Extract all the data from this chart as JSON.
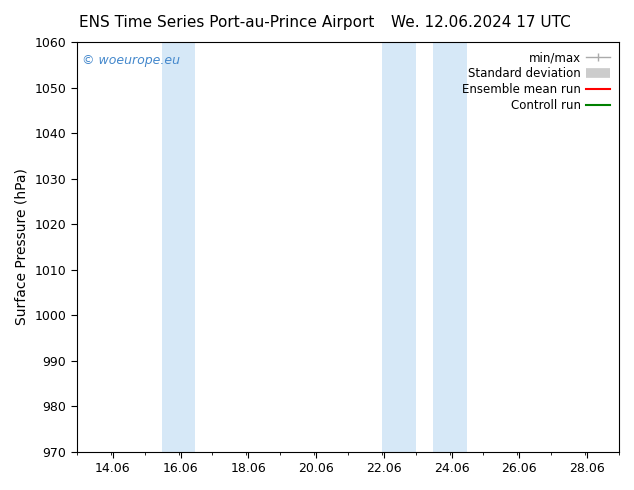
{
  "title_left": "ENS Time Series Port-au-Prince Airport",
  "title_right": "We. 12.06.2024 17 UTC",
  "ylabel": "Surface Pressure (hPa)",
  "ylim": [
    970,
    1060
  ],
  "yticks": [
    970,
    980,
    990,
    1000,
    1010,
    1020,
    1030,
    1040,
    1050,
    1060
  ],
  "xlim_start": 13.0,
  "xlim_end": 29.0,
  "xtick_positions": [
    14.06,
    16.06,
    18.06,
    20.06,
    22.06,
    24.06,
    26.06,
    28.06
  ],
  "xtick_labels": [
    "14.06",
    "16.06",
    "18.06",
    "20.06",
    "22.06",
    "24.06",
    "26.06",
    "28.06"
  ],
  "shaded_bands": [
    {
      "x_start": 15.5,
      "x_end": 16.5
    },
    {
      "x_start": 22.0,
      "x_end": 23.0
    },
    {
      "x_start": 23.5,
      "x_end": 24.5
    }
  ],
  "band_color": "#d6e8f7",
  "watermark_text": "© woeurope.eu",
  "watermark_color": "#4488cc",
  "legend_items": [
    {
      "label": "min/max",
      "color": "#aaaaaa",
      "lw": 1.0,
      "style": "minmax"
    },
    {
      "label": "Standard deviation",
      "color": "#cccccc",
      "lw": 7,
      "style": "band"
    },
    {
      "label": "Ensemble mean run",
      "color": "#ff0000",
      "lw": 1.5,
      "style": "line"
    },
    {
      "label": "Controll run",
      "color": "#008000",
      "lw": 1.5,
      "style": "line"
    }
  ],
  "bg_color": "#ffffff",
  "axes_bg_color": "#ffffff",
  "font_size_title": 11,
  "font_size_ticks": 9,
  "font_size_ylabel": 10,
  "font_size_legend": 8.5,
  "font_size_watermark": 9
}
